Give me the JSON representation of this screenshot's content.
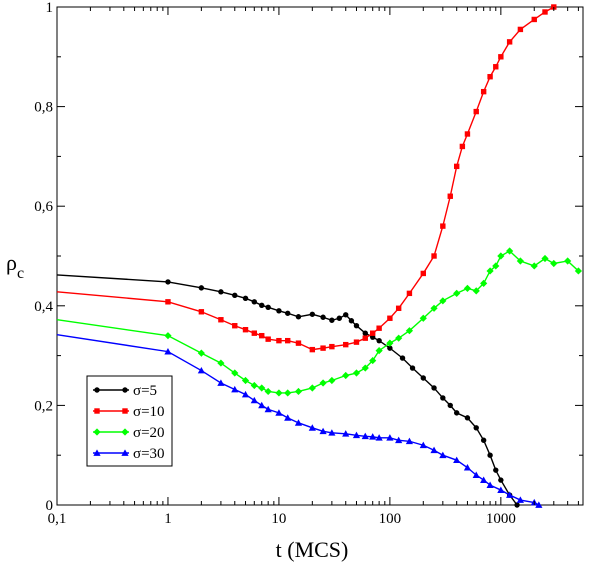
{
  "chart_data": {
    "type": "line",
    "title": "",
    "xlabel": "t (MCS)",
    "ylabel_main": "ρ",
    "ylabel_sub": "c",
    "x_scale": "log",
    "xlim": [
      0.1,
      5500
    ],
    "ylim": [
      0,
      1
    ],
    "grid": false,
    "legend_position": "bottom-left",
    "x_ticks": [
      {
        "value": 0.1,
        "label": "0,1"
      },
      {
        "value": 1,
        "label": "1"
      },
      {
        "value": 10,
        "label": "10"
      },
      {
        "value": 100,
        "label": "100"
      },
      {
        "value": 1000,
        "label": "1000"
      }
    ],
    "y_ticks": [
      {
        "value": 0,
        "label": "0"
      },
      {
        "value": 0.2,
        "label": "0,2"
      },
      {
        "value": 0.4,
        "label": "0,4"
      },
      {
        "value": 0.6,
        "label": "0,6"
      },
      {
        "value": 0.8,
        "label": "0,8"
      },
      {
        "value": 1,
        "label": "1"
      }
    ],
    "series": [
      {
        "name": "σ=5",
        "color": "#000000",
        "marker": "circle",
        "x": [
          0.1,
          1,
          2,
          3,
          4,
          5,
          6,
          7,
          8,
          10,
          12,
          15,
          20,
          25,
          30,
          35,
          40,
          45,
          50,
          60,
          70,
          80,
          100,
          130,
          160,
          200,
          250,
          300,
          350,
          400,
          500,
          600,
          700,
          800,
          900,
          1000,
          1200,
          1400
        ],
        "y": [
          0.462,
          0.448,
          0.436,
          0.428,
          0.421,
          0.415,
          0.408,
          0.401,
          0.397,
          0.39,
          0.385,
          0.378,
          0.383,
          0.377,
          0.371,
          0.375,
          0.382,
          0.37,
          0.36,
          0.345,
          0.337,
          0.33,
          0.315,
          0.295,
          0.275,
          0.255,
          0.235,
          0.215,
          0.2,
          0.185,
          0.175,
          0.155,
          0.13,
          0.1,
          0.07,
          0.05,
          0.02,
          0.0
        ]
      },
      {
        "name": "σ=10",
        "color": "#ff0000",
        "marker": "square",
        "x": [
          0.1,
          1,
          2,
          3,
          4,
          5,
          6,
          7,
          8,
          10,
          12,
          15,
          20,
          25,
          30,
          40,
          50,
          60,
          70,
          80,
          100,
          120,
          150,
          200,
          250,
          300,
          350,
          400,
          450,
          500,
          600,
          700,
          800,
          900,
          1000,
          1200,
          1500,
          2000,
          2500,
          3000
        ],
        "y": [
          0.428,
          0.408,
          0.388,
          0.372,
          0.36,
          0.352,
          0.345,
          0.34,
          0.333,
          0.33,
          0.33,
          0.325,
          0.312,
          0.315,
          0.318,
          0.322,
          0.327,
          0.335,
          0.345,
          0.355,
          0.375,
          0.395,
          0.425,
          0.465,
          0.5,
          0.56,
          0.62,
          0.68,
          0.72,
          0.745,
          0.79,
          0.83,
          0.86,
          0.88,
          0.9,
          0.93,
          0.955,
          0.975,
          0.99,
          1.0
        ]
      },
      {
        "name": "σ=20",
        "color": "#00ff00",
        "marker": "diamond",
        "x": [
          0.1,
          1,
          2,
          3,
          4,
          5,
          6,
          7,
          8,
          10,
          12,
          15,
          20,
          25,
          30,
          40,
          50,
          60,
          70,
          80,
          100,
          120,
          150,
          200,
          250,
          300,
          400,
          500,
          600,
          700,
          800,
          900,
          1000,
          1200,
          1500,
          2000,
          2500,
          3000,
          4000,
          5000
        ],
        "y": [
          0.372,
          0.34,
          0.305,
          0.285,
          0.265,
          0.25,
          0.24,
          0.235,
          0.228,
          0.225,
          0.225,
          0.228,
          0.235,
          0.245,
          0.25,
          0.26,
          0.265,
          0.275,
          0.29,
          0.31,
          0.325,
          0.335,
          0.35,
          0.375,
          0.395,
          0.41,
          0.425,
          0.435,
          0.43,
          0.445,
          0.47,
          0.48,
          0.5,
          0.51,
          0.49,
          0.48,
          0.495,
          0.485,
          0.49,
          0.47
        ]
      },
      {
        "name": "σ=30",
        "color": "#0000ff",
        "marker": "triangle",
        "x": [
          0.1,
          1,
          2,
          3,
          4,
          5,
          6,
          7,
          8,
          10,
          12,
          15,
          20,
          25,
          30,
          40,
          50,
          60,
          70,
          80,
          100,
          120,
          150,
          200,
          250,
          300,
          400,
          500,
          600,
          700,
          800,
          1000,
          1200,
          1500,
          2000,
          2200
        ],
        "y": [
          0.342,
          0.308,
          0.27,
          0.245,
          0.232,
          0.222,
          0.21,
          0.2,
          0.192,
          0.185,
          0.175,
          0.165,
          0.155,
          0.148,
          0.145,
          0.143,
          0.14,
          0.138,
          0.137,
          0.135,
          0.135,
          0.13,
          0.128,
          0.12,
          0.11,
          0.1,
          0.09,
          0.075,
          0.06,
          0.05,
          0.04,
          0.03,
          0.02,
          0.01,
          0.005,
          0.0
        ]
      }
    ]
  }
}
